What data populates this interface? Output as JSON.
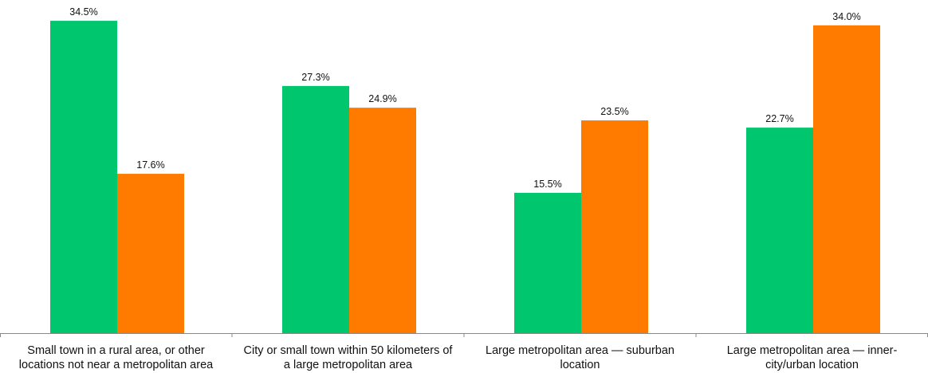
{
  "chart_data": {
    "type": "bar",
    "title": "",
    "xlabel": "",
    "ylabel": "",
    "ylim": [
      0,
      35
    ],
    "grid": false,
    "legend": "none",
    "value_format": "percent-1dp",
    "categories": [
      [
        "Small town in a rural area, or other",
        "locations not near a metropolitan area"
      ],
      [
        "City or small town within 50 kilometers of",
        "a large metropolitan area"
      ],
      [
        "Large metropolitan area — suburban",
        "location"
      ],
      [
        "Large metropolitan area — inner-",
        "city/urban location"
      ]
    ],
    "series": [
      {
        "color": "#00c66e",
        "values": [
          34.5,
          27.3,
          15.5,
          22.7
        ],
        "labels": [
          "34.5%",
          "27.3%",
          "15.5%",
          "22.7%"
        ]
      },
      {
        "color": "#ff7b00",
        "values": [
          17.6,
          24.9,
          23.5,
          34.0
        ],
        "labels": [
          "17.6%",
          "24.9%",
          "23.5%",
          "34.0%"
        ]
      }
    ]
  }
}
